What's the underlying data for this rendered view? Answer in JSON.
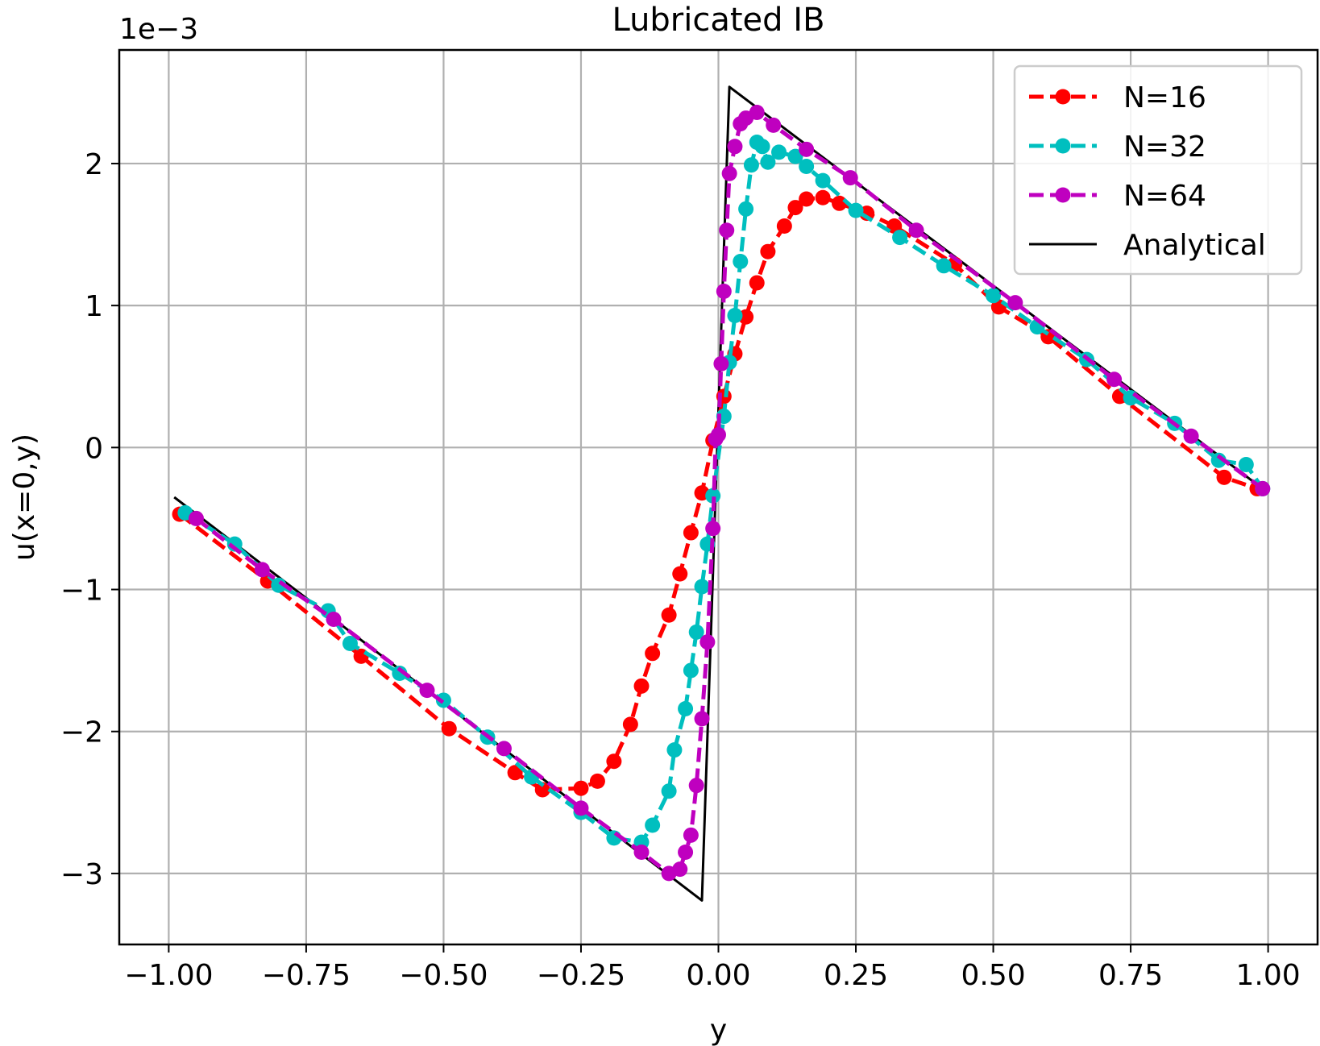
{
  "chart_data": {
    "type": "line",
    "title": "Lubricated IB",
    "xlabel": "y",
    "ylabel": "u(x=0,y)",
    "y_scale_label": "1e−3",
    "xlim": [
      -1.09,
      1.09
    ],
    "ylim": [
      -3.5,
      2.8
    ],
    "x_ticks": [
      -1.0,
      -0.75,
      -0.5,
      -0.25,
      0.0,
      0.25,
      0.5,
      0.75,
      1.0
    ],
    "x_tick_labels": [
      "−1.00",
      "−0.75",
      "−0.50",
      "−0.25",
      "0.00",
      "0.25",
      "0.50",
      "0.75",
      "1.00"
    ],
    "y_ticks": [
      -3,
      -2,
      -1,
      0,
      1,
      2
    ],
    "y_tick_labels": [
      "−3",
      "−2",
      "−1",
      "0",
      "1",
      "2"
    ],
    "grid": true,
    "legend_position": "top-right",
    "series": [
      {
        "name": "N=16",
        "color": "#ff0000",
        "line_style": "dashed",
        "marker": "circle",
        "x": [
          -0.98,
          -0.82,
          -0.65,
          -0.49,
          -0.37,
          -0.32,
          -0.25,
          -0.22,
          -0.19,
          -0.16,
          -0.14,
          -0.12,
          -0.09,
          -0.07,
          -0.05,
          -0.03,
          -0.01,
          0.01,
          0.03,
          0.05,
          0.07,
          0.09,
          0.12,
          0.14,
          0.16,
          0.19,
          0.22,
          0.27,
          0.32,
          0.43,
          0.51,
          0.6,
          0.73,
          0.92,
          0.98
        ],
        "y": [
          -0.47,
          -0.94,
          -1.47,
          -1.98,
          -2.29,
          -2.41,
          -2.4,
          -2.35,
          -2.21,
          -1.95,
          -1.68,
          -1.45,
          -1.18,
          -0.89,
          -0.6,
          -0.32,
          0.05,
          0.36,
          0.66,
          0.92,
          1.16,
          1.38,
          1.56,
          1.69,
          1.75,
          1.76,
          1.72,
          1.65,
          1.56,
          1.29,
          0.99,
          0.78,
          0.36,
          -0.21,
          -0.29
        ]
      },
      {
        "name": "N=32",
        "color": "#00bfbf",
        "line_style": "dashed",
        "marker": "circle",
        "x": [
          -0.97,
          -0.88,
          -0.8,
          -0.71,
          -0.67,
          -0.58,
          -0.5,
          -0.42,
          -0.34,
          -0.25,
          -0.19,
          -0.14,
          -0.12,
          -0.09,
          -0.08,
          -0.06,
          -0.05,
          -0.04,
          -0.03,
          -0.02,
          -0.01,
          0.01,
          0.02,
          0.03,
          0.04,
          0.05,
          0.06,
          0.07,
          0.08,
          0.09,
          0.11,
          0.14,
          0.16,
          0.19,
          0.25,
          0.33,
          0.41,
          0.5,
          0.58,
          0.67,
          0.75,
          0.83,
          0.91,
          0.96,
          0.99
        ],
        "y": [
          -0.46,
          -0.68,
          -0.97,
          -1.15,
          -1.38,
          -1.59,
          -1.78,
          -2.04,
          -2.32,
          -2.57,
          -2.75,
          -2.78,
          -2.66,
          -2.42,
          -2.13,
          -1.84,
          -1.57,
          -1.3,
          -0.98,
          -0.68,
          -0.34,
          0.22,
          0.6,
          0.93,
          1.31,
          1.68,
          1.99,
          2.15,
          2.12,
          2.01,
          2.08,
          2.05,
          1.98,
          1.88,
          1.67,
          1.48,
          1.28,
          1.07,
          0.85,
          0.62,
          0.35,
          0.17,
          -0.09,
          -0.12,
          -0.29
        ]
      },
      {
        "name": "N=64",
        "color": "#bf00bf",
        "line_style": "dashed",
        "marker": "circle",
        "x": [
          -0.95,
          -0.83,
          -0.7,
          -0.53,
          -0.39,
          -0.25,
          -0.14,
          -0.09,
          -0.07,
          -0.06,
          -0.05,
          -0.04,
          -0.03,
          -0.02,
          -0.01,
          -0.005,
          0.0,
          0.005,
          0.01,
          0.015,
          0.02,
          0.03,
          0.04,
          0.05,
          0.07,
          0.1,
          0.16,
          0.24,
          0.36,
          0.54,
          0.72,
          0.86,
          0.99
        ],
        "y": [
          -0.5,
          -0.86,
          -1.21,
          -1.71,
          -2.12,
          -2.54,
          -2.85,
          -3.0,
          -2.97,
          -2.85,
          -2.73,
          -2.38,
          -1.91,
          -1.37,
          -0.57,
          0.06,
          0.09,
          0.59,
          1.1,
          1.53,
          1.93,
          2.12,
          2.28,
          2.32,
          2.36,
          2.27,
          2.1,
          1.9,
          1.53,
          1.02,
          0.48,
          0.08,
          -0.29
        ]
      },
      {
        "name": "Analytical",
        "color": "#000000",
        "line_style": "solid",
        "marker": "none",
        "x": [
          -0.99,
          -0.03,
          0.02,
          0.99
        ],
        "y": [
          -0.35,
          -3.19,
          2.54,
          -0.29
        ]
      }
    ]
  }
}
